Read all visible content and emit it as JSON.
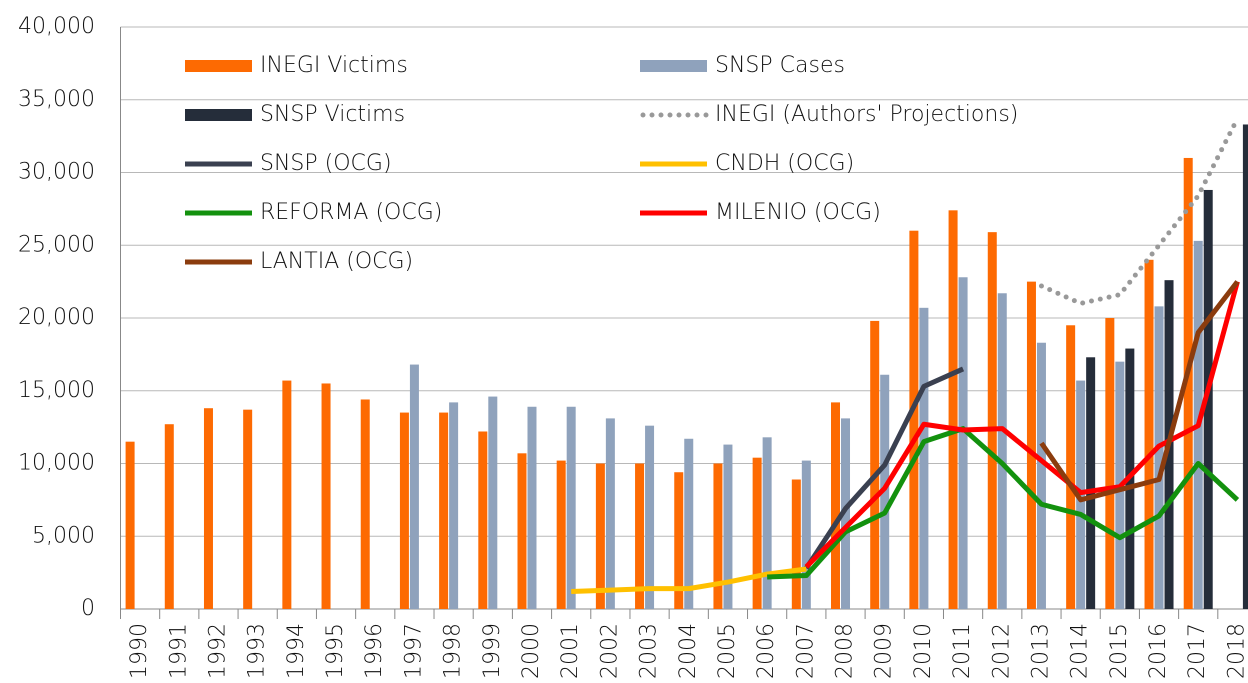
{
  "chart_data": {
    "type": "bar",
    "categories": [
      "1990",
      "1991",
      "1992",
      "1993",
      "1994",
      "1995",
      "1996",
      "1997",
      "1998",
      "1999",
      "2000",
      "2001",
      "2002",
      "2003",
      "2004",
      "2005",
      "2006",
      "2007",
      "2008",
      "2009",
      "2010",
      "2011",
      "2012",
      "2013",
      "2014",
      "2015",
      "2016",
      "2017",
      "2018"
    ],
    "ylim": [
      0,
      40000
    ],
    "yticks": [
      0,
      {
        "value": 5000,
        "label": "5,000"
      },
      {
        "value": 10000,
        "label": "10,000"
      },
      {
        "value": 15000,
        "label": "15,000"
      },
      {
        "value": 20000,
        "label": "20,000"
      },
      {
        "value": 25000,
        "label": "25,000"
      },
      {
        "value": 30000,
        "label": "30,000"
      },
      {
        "value": 35000,
        "label": "35,000"
      },
      {
        "value": 40000,
        "label": "40,000"
      }
    ],
    "grid": true,
    "series": [
      {
        "name": "INEGI Victims",
        "type": "bar",
        "color": "#fd6a02",
        "values": [
          11500,
          12700,
          13800,
          13700,
          15700,
          15500,
          14400,
          13500,
          13500,
          12200,
          10700,
          10200,
          10000,
          10000,
          9400,
          10000,
          10400,
          8900,
          14200,
          19800,
          26000,
          27400,
          25900,
          22500,
          19500,
          20000,
          24000,
          31000,
          null
        ]
      },
      {
        "name": "SNSP Cases",
        "type": "bar",
        "color": "#8fa2bc",
        "values": [
          null,
          null,
          null,
          null,
          null,
          null,
          null,
          16800,
          14200,
          14600,
          13900,
          13900,
          13100,
          12600,
          11700,
          11300,
          11800,
          10200,
          13100,
          16100,
          20700,
          22800,
          21700,
          18300,
          15700,
          17000,
          20800,
          25300,
          null
        ]
      },
      {
        "name": "SNSP Victims",
        "type": "bar",
        "color": "#252d3a",
        "values": [
          null,
          null,
          null,
          null,
          null,
          null,
          null,
          null,
          null,
          null,
          null,
          null,
          null,
          null,
          null,
          null,
          null,
          null,
          null,
          null,
          null,
          null,
          null,
          null,
          17300,
          17900,
          22600,
          28800,
          33300
        ]
      },
      {
        "name": "INEGI (Authors' Projections)",
        "type": "line",
        "style": "dotted",
        "color": "#999999",
        "values": [
          null,
          null,
          null,
          null,
          null,
          null,
          null,
          null,
          null,
          null,
          null,
          null,
          null,
          null,
          null,
          null,
          null,
          null,
          null,
          null,
          null,
          null,
          null,
          22200,
          21000,
          21600,
          25000,
          28400,
          33700
        ]
      },
      {
        "name": "SNSP (OCG)",
        "type": "line",
        "color": "#3a4050",
        "values": [
          null,
          null,
          null,
          null,
          null,
          null,
          null,
          null,
          null,
          null,
          null,
          null,
          null,
          null,
          null,
          null,
          null,
          2800,
          6900,
          9900,
          15300,
          16500,
          null,
          null,
          null,
          null,
          null,
          null,
          null
        ]
      },
      {
        "name": "CNDH (OCG)",
        "type": "line",
        "color": "#ffc000",
        "values": [
          null,
          null,
          null,
          null,
          null,
          null,
          null,
          null,
          null,
          null,
          null,
          1200,
          1300,
          1400,
          1400,
          1850,
          2400,
          2750,
          null,
          null,
          null,
          null,
          null,
          null,
          null,
          null,
          null,
          null,
          null
        ]
      },
      {
        "name": "REFORMA (OCG)",
        "type": "line",
        "color": "#13910e",
        "values": [
          null,
          null,
          null,
          null,
          null,
          null,
          null,
          null,
          null,
          null,
          null,
          null,
          null,
          null,
          null,
          null,
          2200,
          2300,
          5300,
          6600,
          11500,
          12400,
          10000,
          7200,
          6500,
          4900,
          6400,
          10000,
          7500
        ]
      },
      {
        "name": "MILENIO (OCG)",
        "type": "line",
        "color": "#ff0000",
        "values": [
          null,
          null,
          null,
          null,
          null,
          null,
          null,
          null,
          null,
          null,
          null,
          null,
          null,
          null,
          null,
          null,
          null,
          2900,
          5600,
          8300,
          12700,
          12300,
          12400,
          10200,
          8000,
          8400,
          11200,
          12600,
          22500
        ]
      },
      {
        "name": "LANTIA (OCG)",
        "type": "line",
        "color": "#8b3c0e",
        "values": [
          null,
          null,
          null,
          null,
          null,
          null,
          null,
          null,
          null,
          null,
          null,
          null,
          null,
          null,
          null,
          null,
          null,
          null,
          null,
          null,
          null,
          null,
          null,
          11400,
          7500,
          8200,
          8900,
          19000,
          22500
        ]
      }
    ]
  }
}
